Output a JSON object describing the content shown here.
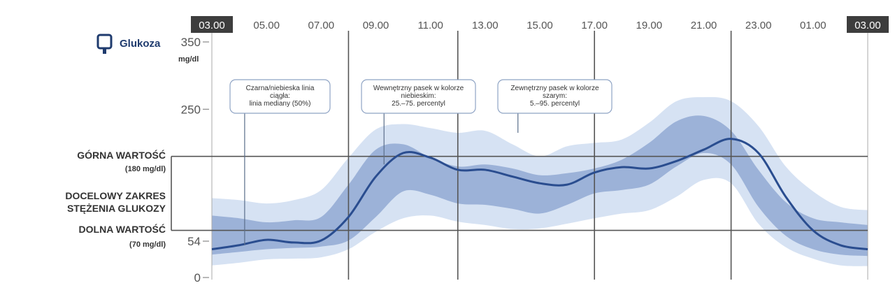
{
  "chart_data": {
    "type": "area",
    "x_ticks": [
      "03.00",
      "05.00",
      "07.00",
      "09.00",
      "11.00",
      "13.00",
      "15.00",
      "17.00",
      "19.00",
      "21.00",
      "23.00",
      "01.00",
      "03.00"
    ],
    "x_highlighted_ticks": [
      0,
      12
    ],
    "xlim_hours": [
      0,
      24
    ],
    "ylim": [
      0,
      350
    ],
    "y_ticks": [
      0,
      54,
      250,
      350
    ],
    "y_unit": "mg/dl",
    "legend": {
      "label": "Glukoza",
      "icon": "glucose-sensor-icon",
      "color": "#1f3b6e"
    },
    "target_range": {
      "upper": 180,
      "lower": 70,
      "upper_label": "GÓRNA WARTOŚĆ",
      "upper_sub": "(180 mg/dl)",
      "lower_label": "DOLNA WARTOŚĆ",
      "lower_sub": "(70 mg/dl)",
      "range_label_lines": [
        "DOCELOWY ZAKRES",
        "STĘŻENIA GLUKOZY"
      ]
    },
    "vertical_lines_hours": [
      5,
      9,
      14,
      19
    ],
    "series": [
      {
        "key": "p5_95",
        "color": "#d6e2f3",
        "x": [
          0,
          1,
          2,
          3,
          4,
          5,
          6,
          7,
          8,
          9,
          10,
          11,
          12,
          13,
          14,
          15,
          16,
          17,
          18,
          19,
          20,
          21,
          22,
          23,
          24
        ],
        "lower": [
          18,
          22,
          27,
          28,
          30,
          42,
          68,
          88,
          92,
          83,
          78,
          72,
          73,
          80,
          88,
          95,
          100,
          120,
          145,
          140,
          80,
          45,
          28,
          18,
          17
        ],
        "upper": [
          118,
          115,
          110,
          115,
          130,
          178,
          220,
          228,
          222,
          215,
          218,
          198,
          180,
          195,
          200,
          205,
          230,
          262,
          268,
          262,
          225,
          165,
          128,
          105,
          100
        ]
      },
      {
        "key": "p25_75",
        "color": "#9cb2d8",
        "x": [
          0,
          1,
          2,
          3,
          4,
          5,
          6,
          7,
          8,
          9,
          10,
          11,
          12,
          13,
          14,
          15,
          16,
          17,
          18,
          19,
          20,
          21,
          22,
          23,
          24
        ],
        "lower": [
          34,
          38,
          42,
          44,
          46,
          55,
          90,
          128,
          123,
          110,
          108,
          102,
          95,
          108,
          125,
          130,
          138,
          165,
          185,
          168,
          105,
          62,
          42,
          34,
          32
        ],
        "upper": [
          92,
          88,
          82,
          85,
          90,
          138,
          190,
          198,
          178,
          165,
          168,
          162,
          152,
          155,
          162,
          175,
          200,
          232,
          240,
          218,
          160,
          112,
          88,
          82,
          78
        ]
      },
      {
        "key": "median",
        "color": "#2a4d8f",
        "x": [
          0,
          1,
          2,
          3,
          4,
          5,
          6,
          7,
          8,
          9,
          10,
          11,
          12,
          13,
          14,
          15,
          16,
          17,
          18,
          19,
          20,
          21,
          22,
          23,
          24
        ],
        "values": [
          42,
          48,
          56,
          52,
          55,
          90,
          150,
          185,
          178,
          160,
          160,
          150,
          140,
          138,
          156,
          164,
          162,
          173,
          190,
          206,
          185,
          120,
          70,
          48,
          42
        ]
      }
    ],
    "callouts": [
      {
        "lines": [
          "Czarna/niebieska linia",
          "ciągła:",
          "linia mediany (50%)"
        ],
        "pointer_hour": 1.2,
        "pointer_value": 48
      },
      {
        "lines": [
          "Wewnętrzny pasek w kolorze",
          "niebieskim:",
          "25.–75. percentyl"
        ],
        "pointer_hour": 6.3,
        "pointer_value": 168
      },
      {
        "lines": [
          "Zewnętrzny pasek w kolorze",
          "szarym:",
          "5.–95. percentyl"
        ],
        "pointer_hour": 11.2,
        "pointer_value": 215
      }
    ]
  }
}
